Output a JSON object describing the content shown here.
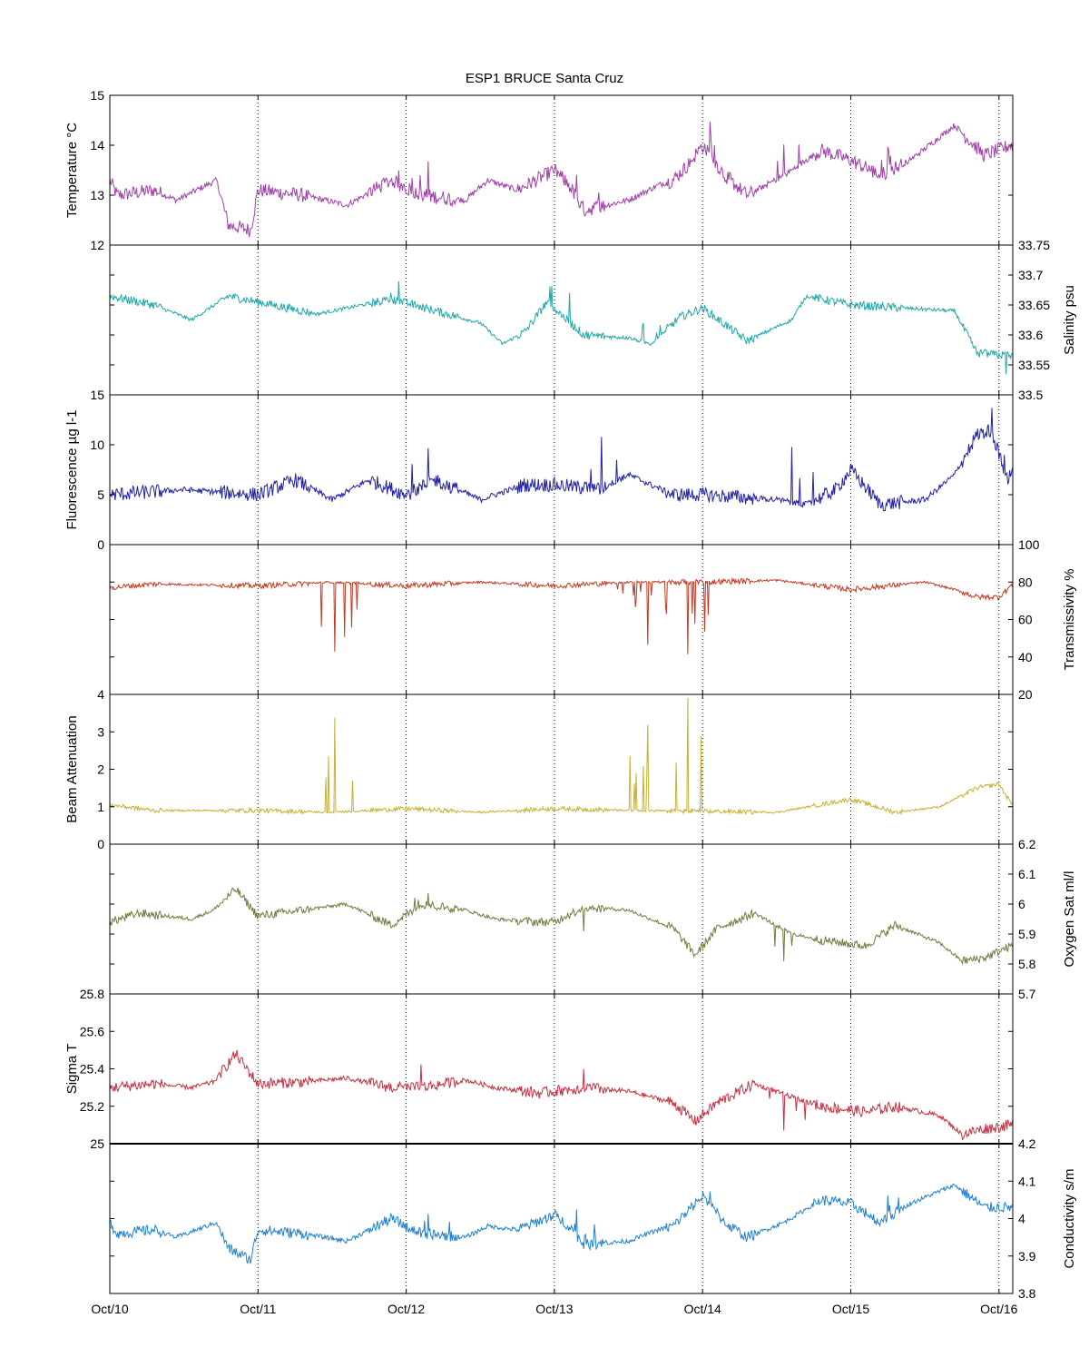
{
  "chart_data": {
    "type": "line",
    "title": "ESP1 BRUCE Santa Cruz",
    "x_ticks": [
      "Oct/10",
      "Oct/11",
      "Oct/12",
      "Oct/13",
      "Oct/14",
      "Oct/15",
      "Oct/16"
    ],
    "xlim": [
      "Oct/10",
      "Oct/16 +0.1d"
    ],
    "grid": "vertical dotted at day ticks",
    "panels": [
      {
        "id": "temperature",
        "label": "Temperature °C",
        "axis_side": "left",
        "ylim": [
          12,
          15
        ],
        "ticks": [
          "12",
          "13",
          "14",
          "15"
        ],
        "color": "#a040a8",
        "anchors": [
          [
            0,
            13.3
          ],
          [
            0.05,
            13.0
          ],
          [
            0.3,
            13.1
          ],
          [
            0.45,
            12.9
          ],
          [
            0.72,
            13.3
          ],
          [
            0.8,
            12.4
          ],
          [
            0.95,
            12.3
          ],
          [
            1.0,
            13.1
          ],
          [
            1.3,
            13.0
          ],
          [
            1.6,
            12.8
          ],
          [
            1.9,
            13.3
          ],
          [
            2.1,
            13.0
          ],
          [
            2.4,
            12.9
          ],
          [
            2.55,
            13.3
          ],
          [
            2.75,
            13.1
          ],
          [
            3.0,
            13.5
          ],
          [
            3.1,
            13.2
          ],
          [
            3.2,
            12.7
          ],
          [
            3.5,
            12.9
          ],
          [
            3.7,
            13.2
          ],
          [
            3.8,
            13.3
          ],
          [
            3.9,
            13.6
          ],
          [
            4.0,
            14.0
          ],
          [
            4.15,
            13.4
          ],
          [
            4.3,
            13.0
          ],
          [
            4.55,
            13.4
          ],
          [
            4.8,
            13.9
          ],
          [
            5.0,
            13.7
          ],
          [
            5.2,
            13.4
          ],
          [
            5.4,
            13.7
          ],
          [
            5.7,
            14.4
          ],
          [
            5.9,
            13.8
          ],
          [
            6.08,
            14.0
          ]
        ],
        "noise": 0.12,
        "spikes": [
          [
            1.95,
            0.4,
            0.4
          ],
          [
            2.15,
            0.6,
            0.5
          ],
          [
            3.15,
            0.5,
            0.6
          ],
          [
            4.05,
            0.6,
            0.5
          ],
          [
            4.55,
            0.6,
            0.4
          ],
          [
            5.25,
            0.6,
            0.5
          ]
        ]
      },
      {
        "id": "salinity",
        "label": "Salinity psu",
        "axis_side": "right",
        "ylim": [
          33.5,
          33.75
        ],
        "ticks": [
          "33.5",
          "33.55",
          "33.6",
          "33.65",
          "33.7",
          "33.75"
        ],
        "color": "#20a8a8",
        "anchors": [
          [
            0,
            33.665
          ],
          [
            0.3,
            33.65
          ],
          [
            0.55,
            33.625
          ],
          [
            0.8,
            33.665
          ],
          [
            1.0,
            33.655
          ],
          [
            1.4,
            33.635
          ],
          [
            1.9,
            33.66
          ],
          [
            2.2,
            33.64
          ],
          [
            2.5,
            33.62
          ],
          [
            2.65,
            33.585
          ],
          [
            2.8,
            33.605
          ],
          [
            2.95,
            33.655
          ],
          [
            3.2,
            33.6
          ],
          [
            3.5,
            33.595
          ],
          [
            3.65,
            33.585
          ],
          [
            3.85,
            33.63
          ],
          [
            4.0,
            33.645
          ],
          [
            4.3,
            33.59
          ],
          [
            4.6,
            33.625
          ],
          [
            4.7,
            33.665
          ],
          [
            5.0,
            33.65
          ],
          [
            5.7,
            33.64
          ],
          [
            5.85,
            33.57
          ],
          [
            6.08,
            33.565
          ]
        ],
        "noise": 0.006,
        "spikes": [
          [
            1.95,
            0.035,
            0.3
          ],
          [
            3.1,
            0.05,
            0.5
          ],
          [
            3.6,
            0.03,
            0.4
          ],
          [
            6.05,
            -0.025,
            0.3
          ]
        ]
      },
      {
        "id": "fluorescence",
        "label": "Fluorescence µg l-1",
        "axis_side": "left",
        "ylim": [
          0,
          15
        ],
        "ticks": [
          "0",
          "5",
          "10",
          "15"
        ],
        "color": "#2020a8",
        "anchors": [
          [
            0,
            5.0
          ],
          [
            0.5,
            5.5
          ],
          [
            1.0,
            5.0
          ],
          [
            1.25,
            6.5
          ],
          [
            1.5,
            4.5
          ],
          [
            1.75,
            6.5
          ],
          [
            2.0,
            5.0
          ],
          [
            2.2,
            6.5
          ],
          [
            2.5,
            4.5
          ],
          [
            2.8,
            6.0
          ],
          [
            3.0,
            6.0
          ],
          [
            3.3,
            5.5
          ],
          [
            3.5,
            7.0
          ],
          [
            3.8,
            5.0
          ],
          [
            4.0,
            5.0
          ],
          [
            4.5,
            4.5
          ],
          [
            4.7,
            4.0
          ],
          [
            4.9,
            5.5
          ],
          [
            5.0,
            7.5
          ],
          [
            5.2,
            4.0
          ],
          [
            5.5,
            4.5
          ],
          [
            5.7,
            7.0
          ],
          [
            5.85,
            11.0
          ],
          [
            5.95,
            11.5
          ],
          [
            6.05,
            6.5
          ],
          [
            6.08,
            7.0
          ]
        ],
        "noise": 0.6,
        "spikes": [
          [
            2.15,
            4.0,
            0.5
          ],
          [
            3.32,
            5.0,
            0.5
          ],
          [
            4.6,
            5.5,
            0.4
          ],
          [
            5.95,
            3.0,
            0.5
          ]
        ]
      },
      {
        "id": "transmissivity",
        "label": "Transmissivity %",
        "axis_side": "right",
        "ylim": [
          20,
          100
        ],
        "ticks": [
          "20",
          "40",
          "60",
          "80",
          "100"
        ],
        "color": "#c83820",
        "anchors": [
          [
            0,
            77
          ],
          [
            0.3,
            79
          ],
          [
            1.0,
            78
          ],
          [
            1.5,
            80
          ],
          [
            2.0,
            78
          ],
          [
            2.5,
            80
          ],
          [
            3.0,
            78
          ],
          [
            3.5,
            80
          ],
          [
            4.0,
            80
          ],
          [
            4.5,
            81
          ],
          [
            5.0,
            76
          ],
          [
            5.5,
            80
          ],
          [
            5.7,
            76
          ],
          [
            5.85,
            72
          ],
          [
            6.0,
            72
          ],
          [
            6.08,
            78
          ]
        ],
        "noise": 1.2,
        "spikes": [
          [
            1.52,
            -37,
            1.0
          ],
          [
            3.63,
            -33,
            1.0
          ],
          [
            3.9,
            -40,
            1.0
          ],
          [
            3.55,
            -10,
            0.8
          ]
        ]
      },
      {
        "id": "beam_attenuation",
        "label": "Beam Attenuation",
        "axis_side": "left",
        "ylim": [
          0,
          4
        ],
        "ticks": [
          "0",
          "1",
          "2",
          "3",
          "4"
        ],
        "color": "#c8b030",
        "anchors": [
          [
            0,
            1.05
          ],
          [
            0.3,
            0.9
          ],
          [
            1.0,
            0.9
          ],
          [
            1.5,
            0.85
          ],
          [
            2.0,
            0.95
          ],
          [
            2.5,
            0.85
          ],
          [
            3.0,
            0.95
          ],
          [
            3.5,
            0.9
          ],
          [
            4.0,
            0.88
          ],
          [
            4.5,
            0.85
          ],
          [
            5.0,
            1.2
          ],
          [
            5.3,
            0.85
          ],
          [
            5.6,
            1.0
          ],
          [
            5.85,
            1.5
          ],
          [
            6.0,
            1.6
          ],
          [
            6.08,
            1.1
          ]
        ],
        "noise": 0.05,
        "spikes": [
          [
            1.52,
            2.5,
            1.0
          ],
          [
            3.63,
            2.3,
            1.0
          ],
          [
            3.9,
            3.0,
            1.0
          ],
          [
            3.55,
            1.0,
            0.8
          ]
        ]
      },
      {
        "id": "oxygen_sat",
        "label": "Oxygen Sat ml/l",
        "axis_side": "right",
        "ylim": [
          5.7,
          6.2
        ],
        "ticks": [
          "5.7",
          "5.8",
          "5.9",
          "6",
          "6.1",
          "6.2"
        ],
        "color": "#787840",
        "anchors": [
          [
            0,
            5.94
          ],
          [
            0.2,
            5.97
          ],
          [
            0.55,
            5.95
          ],
          [
            0.7,
            5.98
          ],
          [
            0.85,
            6.05
          ],
          [
            1.0,
            5.96
          ],
          [
            1.3,
            5.98
          ],
          [
            1.6,
            6.0
          ],
          [
            1.9,
            5.93
          ],
          [
            2.1,
            6.0
          ],
          [
            2.4,
            5.98
          ],
          [
            2.6,
            5.95
          ],
          [
            2.9,
            5.94
          ],
          [
            3.0,
            5.94
          ],
          [
            3.2,
            5.99
          ],
          [
            3.5,
            5.98
          ],
          [
            3.8,
            5.92
          ],
          [
            3.95,
            5.83
          ],
          [
            4.1,
            5.92
          ],
          [
            4.35,
            5.97
          ],
          [
            4.6,
            5.9
          ],
          [
            4.8,
            5.88
          ],
          [
            5.1,
            5.86
          ],
          [
            5.3,
            5.93
          ],
          [
            5.6,
            5.87
          ],
          [
            5.75,
            5.81
          ],
          [
            5.9,
            5.82
          ],
          [
            6.08,
            5.86
          ]
        ],
        "noise": 0.012,
        "spikes": [
          [
            3.2,
            -0.08,
            0.4
          ],
          [
            4.55,
            -0.1,
            0.4
          ],
          [
            2.15,
            0.05,
            0.4
          ]
        ]
      },
      {
        "id": "sigma_t",
        "label": "Sigma T",
        "axis_side": "left",
        "ylim": [
          25,
          25.8
        ],
        "ticks": [
          "25",
          "25.2",
          "25.4",
          "25.6",
          "25.8"
        ],
        "color": "#c83040",
        "anchors": [
          [
            0,
            25.3
          ],
          [
            0.3,
            25.32
          ],
          [
            0.55,
            25.3
          ],
          [
            0.7,
            25.33
          ],
          [
            0.85,
            25.48
          ],
          [
            1.0,
            25.32
          ],
          [
            1.3,
            25.33
          ],
          [
            1.6,
            25.35
          ],
          [
            1.9,
            25.3
          ],
          [
            2.1,
            25.3
          ],
          [
            2.4,
            25.34
          ],
          [
            2.6,
            25.3
          ],
          [
            2.9,
            25.27
          ],
          [
            3.2,
            25.3
          ],
          [
            3.5,
            25.28
          ],
          [
            3.8,
            25.22
          ],
          [
            3.95,
            25.12
          ],
          [
            4.1,
            25.22
          ],
          [
            4.35,
            25.32
          ],
          [
            4.6,
            25.25
          ],
          [
            4.8,
            25.2
          ],
          [
            5.1,
            25.17
          ],
          [
            5.3,
            25.2
          ],
          [
            5.6,
            25.15
          ],
          [
            5.75,
            25.05
          ],
          [
            5.9,
            25.08
          ],
          [
            6.08,
            25.1
          ]
        ],
        "noise": 0.025,
        "spikes": [
          [
            2.1,
            0.15,
            0.5
          ],
          [
            3.2,
            0.12,
            0.4
          ],
          [
            4.55,
            -0.2,
            0.4
          ]
        ]
      },
      {
        "id": "conductivity",
        "label": "Conductivity s/m",
        "axis_side": "right",
        "ylim": [
          3.8,
          4.2
        ],
        "ticks": [
          "3.8",
          "3.9",
          "4",
          "4.1",
          "4.2"
        ],
        "color": "#2080d0",
        "anchors": [
          [
            0,
            3.99
          ],
          [
            0.05,
            3.96
          ],
          [
            0.3,
            3.97
          ],
          [
            0.45,
            3.95
          ],
          [
            0.72,
            3.99
          ],
          [
            0.8,
            3.92
          ],
          [
            0.95,
            3.89
          ],
          [
            1.0,
            3.97
          ],
          [
            1.3,
            3.96
          ],
          [
            1.6,
            3.94
          ],
          [
            1.9,
            4.0
          ],
          [
            2.1,
            3.96
          ],
          [
            2.4,
            3.95
          ],
          [
            2.55,
            3.98
          ],
          [
            2.75,
            3.97
          ],
          [
            3.0,
            4.01
          ],
          [
            3.1,
            3.98
          ],
          [
            3.2,
            3.93
          ],
          [
            3.5,
            3.94
          ],
          [
            3.7,
            3.97
          ],
          [
            3.8,
            3.98
          ],
          [
            3.9,
            4.02
          ],
          [
            4.0,
            4.06
          ],
          [
            4.15,
            3.99
          ],
          [
            4.3,
            3.95
          ],
          [
            4.55,
            3.99
          ],
          [
            4.8,
            4.05
          ],
          [
            5.0,
            4.04
          ],
          [
            5.2,
            3.99
          ],
          [
            5.4,
            4.04
          ],
          [
            5.7,
            4.09
          ],
          [
            5.9,
            4.03
          ],
          [
            6.08,
            4.03
          ]
        ],
        "noise": 0.012,
        "spikes": [
          [
            2.15,
            0.05,
            0.5
          ],
          [
            3.15,
            0.06,
            0.5
          ],
          [
            4.05,
            0.05,
            0.5
          ],
          [
            5.25,
            0.06,
            0.5
          ]
        ]
      }
    ]
  }
}
